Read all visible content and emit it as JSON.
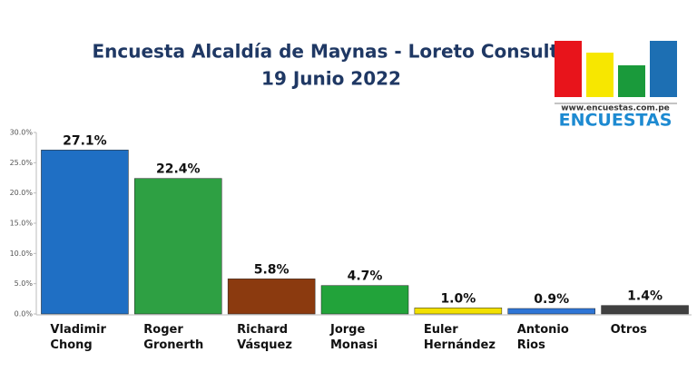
{
  "chart_data": {
    "type": "bar",
    "title": "Encuesta Alcaldía de Maynas - Loreto Consulta",
    "subtitle": "19 Junio 2022",
    "logo": {
      "url": "www.encuestas.com.pe",
      "name": "ENCUESTAS"
    },
    "categories": [
      "Vladimir Chong",
      "Roger Gronerth",
      "Richard Vásquez",
      "Jorge Monasi",
      "Euler Hernández",
      "Antonio Rios",
      "Otros"
    ],
    "values": [
      27.1,
      22.4,
      5.8,
      4.7,
      1.0,
      0.9,
      1.4
    ],
    "value_labels": [
      "27.1%",
      "22.4%",
      "5.8%",
      "4.7%",
      "1.0%",
      "0.9%",
      "1.4%"
    ],
    "colors": [
      "#1f6fc4",
      "#2ea043",
      "#8b3a0f",
      "#22a33a",
      "#f2e000",
      "#2e75d6",
      "#404040"
    ],
    "ylim": [
      0,
      30
    ],
    "yticks": [
      {
        "value": 0,
        "label": "0.0%"
      },
      {
        "value": 5,
        "label": "5.0%"
      },
      {
        "value": 10,
        "label": "10.0%"
      },
      {
        "value": 15,
        "label": "15.0%"
      },
      {
        "value": 20,
        "label": "20.0%"
      },
      {
        "value": 25,
        "label": "25.0%"
      },
      {
        "value": 30,
        "label": "30.0%"
      }
    ],
    "grid": false
  }
}
